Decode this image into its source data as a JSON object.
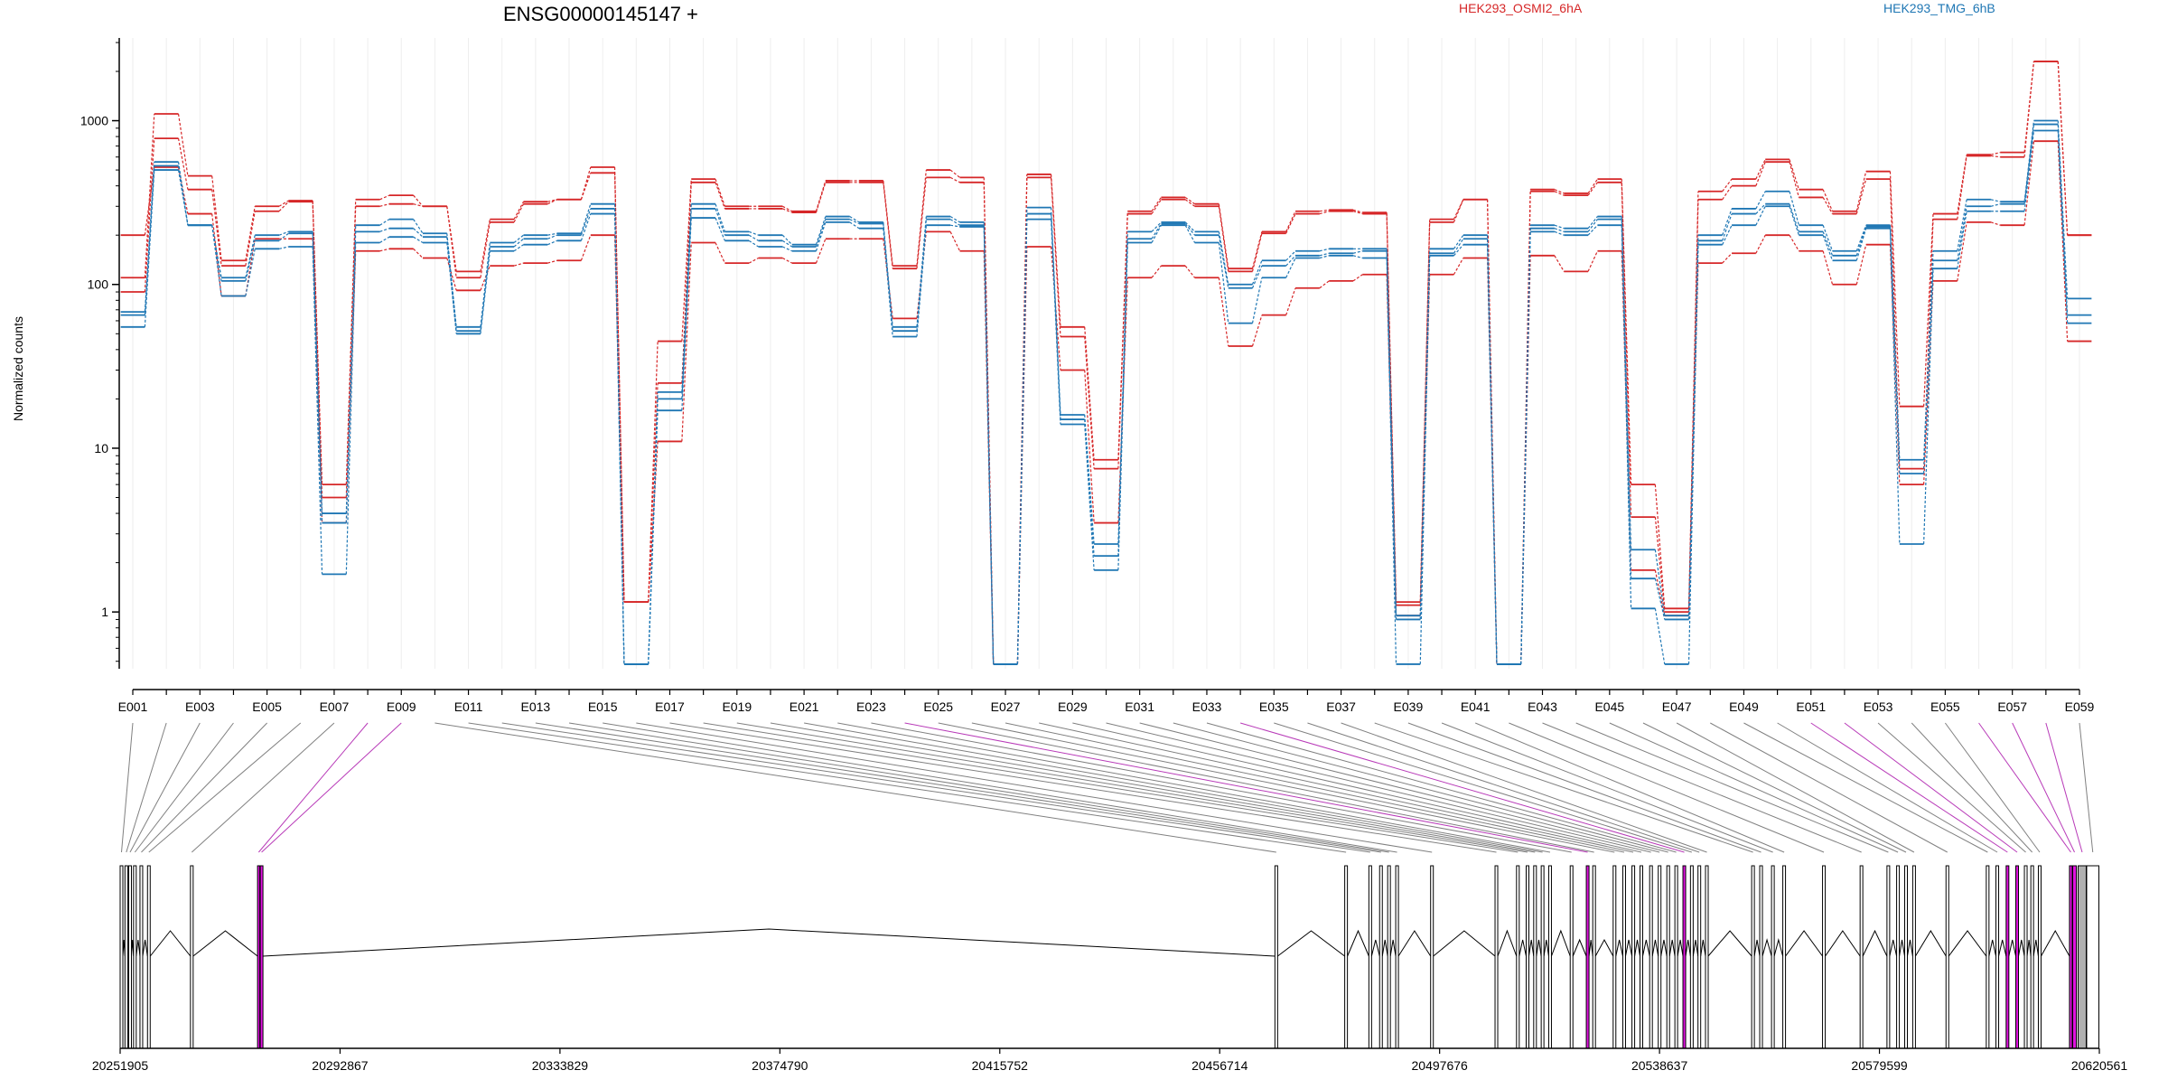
{
  "chart_data": {
    "type": "line",
    "title": "ENSG00000145147 +",
    "ylabel": "Normalized counts",
    "yscale": "log",
    "ylim": [
      0.45,
      3200
    ],
    "yticks": [
      1,
      10,
      100,
      1000
    ],
    "legend": [
      {
        "name": "HEK293_OSMI2_6hA",
        "color": "#d62728"
      },
      {
        "name": "HEK293_TMG_6hB",
        "color": "#1f77b4"
      }
    ],
    "legend_position": "top-right",
    "grid": "vertical-only",
    "exon_labels": [
      "E001",
      "E003",
      "E005",
      "E007",
      "E009",
      "E011",
      "E013",
      "E015",
      "E017",
      "E019",
      "E021",
      "E023",
      "E025",
      "E027",
      "E029",
      "E031",
      "E033",
      "E035",
      "E037",
      "E039",
      "E041",
      "E043",
      "E045",
      "E047",
      "E049",
      "E051",
      "E053",
      "E055",
      "E057",
      "E059"
    ],
    "exon_count": 59,
    "series": [
      {
        "name": "HEK293_OSMI2_6hA",
        "color": "#d62728",
        "values": [
          110,
          1100,
          460,
          140,
          300,
          325,
          6,
          330,
          350,
          300,
          120,
          250,
          320,
          330,
          520,
          1.15,
          45,
          440,
          300,
          300,
          280,
          430,
          430,
          130,
          500,
          450,
          0.48,
          470,
          55,
          8.5,
          280,
          340,
          310,
          125,
          210,
          280,
          285,
          275,
          1.15,
          250,
          330,
          0.48,
          380,
          360,
          440,
          6,
          1.05,
          370,
          440,
          580,
          380,
          280,
          490,
          18,
          270,
          620,
          640,
          2300,
          200
        ]
      },
      {
        "name": "HEK293_OSMI2_6hA",
        "color": "#d62728",
        "values": [
          90,
          780,
          380,
          130,
          280,
          320,
          5,
          300,
          310,
          300,
          110,
          240,
          310,
          330,
          480,
          1.15,
          25,
          420,
          290,
          290,
          275,
          420,
          420,
          125,
          450,
          420,
          0.48,
          450,
          48,
          7.5,
          270,
          330,
          300,
          120,
          205,
          270,
          280,
          270,
          1.1,
          240,
          330,
          0.48,
          370,
          350,
          420,
          3.8,
          1.0,
          330,
          400,
          560,
          340,
          270,
          440,
          7.5,
          250,
          610,
          600,
          2300,
          200
        ]
      },
      {
        "name": "HEK293_OSMI2_6hA",
        "color": "#d62728",
        "values": [
          200,
          520,
          270,
          85,
          190,
          190,
          3.5,
          160,
          165,
          145,
          92,
          130,
          135,
          140,
          200,
          1.15,
          11,
          180,
          135,
          145,
          135,
          190,
          190,
          62,
          210,
          160,
          0.48,
          170,
          30,
          3.5,
          110,
          130,
          110,
          42,
          65,
          95,
          105,
          115,
          0.95,
          115,
          145,
          0.48,
          150,
          120,
          160,
          1.8,
          0.95,
          135,
          155,
          200,
          160,
          100,
          175,
          6,
          105,
          240,
          230,
          750,
          45
        ]
      },
      {
        "name": "HEK293_TMG_6hB",
        "color": "#1f77b4",
        "values": [
          68,
          560,
          230,
          110,
          200,
          210,
          4,
          230,
          250,
          205,
          55,
          180,
          200,
          205,
          310,
          0.48,
          22,
          310,
          210,
          200,
          175,
          260,
          240,
          55,
          260,
          240,
          0.48,
          295,
          16,
          2.6,
          210,
          240,
          210,
          100,
          140,
          160,
          165,
          165,
          0.95,
          165,
          200,
          0.48,
          230,
          220,
          260,
          2.4,
          0.95,
          200,
          290,
          370,
          230,
          160,
          230,
          8.5,
          160,
          330,
          320,
          1000,
          82
        ]
      },
      {
        "name": "HEK293_TMG_6hB",
        "color": "#1f77b4",
        "values": [
          65,
          530,
          230,
          105,
          185,
          205,
          3.5,
          210,
          220,
          195,
          52,
          170,
          190,
          200,
          290,
          0.48,
          20,
          290,
          200,
          185,
          170,
          250,
          235,
          52,
          250,
          230,
          0.48,
          270,
          15,
          2.2,
          190,
          235,
          200,
          95,
          130,
          150,
          155,
          160,
          0.9,
          155,
          190,
          0.48,
          220,
          210,
          250,
          1.6,
          0.9,
          185,
          270,
          310,
          210,
          150,
          225,
          7,
          140,
          300,
          310,
          950,
          65
        ]
      },
      {
        "name": "HEK293_TMG_6hB",
        "color": "#1f77b4",
        "values": [
          55,
          500,
          230,
          85,
          165,
          170,
          1.7,
          180,
          195,
          180,
          50,
          160,
          175,
          185,
          270,
          0.48,
          17,
          255,
          185,
          170,
          160,
          240,
          220,
          48,
          230,
          225,
          0.48,
          250,
          14,
          1.8,
          180,
          230,
          180,
          58,
          110,
          145,
          150,
          145,
          0.48,
          150,
          175,
          0.48,
          210,
          200,
          230,
          1.05,
          0.48,
          175,
          230,
          300,
          200,
          140,
          220,
          2.6,
          125,
          280,
          280,
          870,
          58
        ]
      }
    ],
    "genome": {
      "strand": "+",
      "coordinate_labels": [
        "20251905",
        "20292867",
        "20333829",
        "20374790",
        "20415752",
        "20456714",
        "20497676",
        "20538637",
        "20579599",
        "20620561"
      ],
      "start": 20251905,
      "end": 20620561,
      "highlight_color": "#e012e0",
      "exon_fill_color": "#b0b0b0",
      "exon_starts": [
        20251905,
        20252800,
        20253500,
        20254400,
        20255600,
        20257000,
        20265000,
        20277500,
        20278000,
        20467000,
        20480000,
        20484500,
        20486500,
        20488000,
        20489500,
        20496000,
        20508000,
        20512000,
        20513800,
        20515200,
        20516600,
        20518000,
        20522000,
        20525000,
        20526200,
        20530000,
        20531800,
        20533500,
        20535000,
        20536800,
        20538400,
        20540000,
        20541500,
        20543000,
        20544400,
        20545800,
        20547200,
        20555800,
        20557300,
        20559500,
        20561600,
        20569000,
        20576000,
        20581000,
        20582800,
        20584300,
        20585800,
        20592000,
        20599500,
        20601300,
        20603200,
        20605000,
        20606600,
        20607800,
        20609200,
        20615000,
        20615600,
        20616600,
        20618200
      ],
      "highlighted_exons": [
        8,
        9,
        24,
        34,
        51,
        52,
        56,
        57,
        58
      ]
    }
  }
}
